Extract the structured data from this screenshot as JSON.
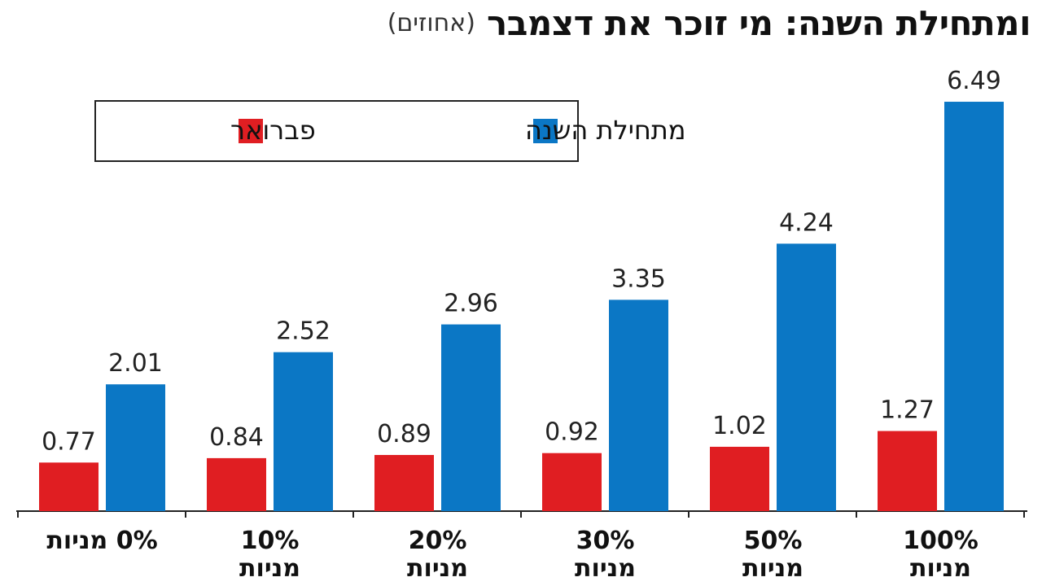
{
  "chart_data": {
    "type": "bar",
    "title": "ומתחילת השנה: מי זוכר את דצמבר",
    "subtitle": "(אחוזים)",
    "categories": [
      "0% מניות",
      "10% מניות",
      "20% מניות",
      "30% מניות",
      "50% מניות",
      "100% מניות"
    ],
    "series": [
      {
        "name": "פברואר",
        "color": "#e01e22",
        "values": [
          0.77,
          0.84,
          0.89,
          0.92,
          1.02,
          1.27
        ]
      },
      {
        "name": "מתחילת השנה",
        "color": "#0b77c5",
        "values": [
          2.01,
          2.52,
          2.96,
          3.35,
          4.24,
          6.49
        ]
      }
    ],
    "legend": "top-left"
  }
}
